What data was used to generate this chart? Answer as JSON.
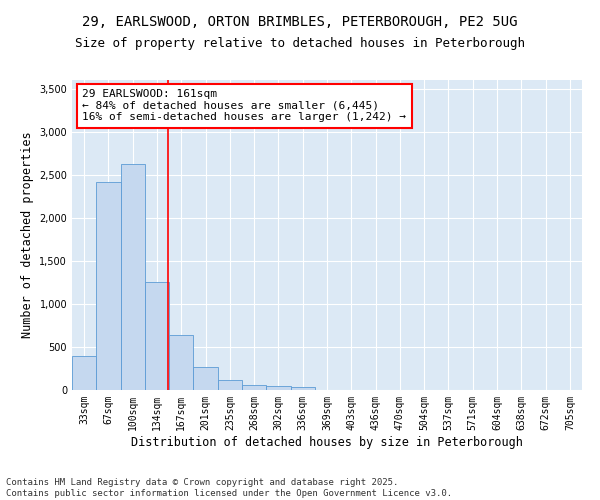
{
  "title_line1": "29, EARLSWOOD, ORTON BRIMBLES, PETERBOROUGH, PE2 5UG",
  "title_line2": "Size of property relative to detached houses in Peterborough",
  "xlabel": "Distribution of detached houses by size in Peterborough",
  "ylabel": "Number of detached properties",
  "categories": [
    "33sqm",
    "67sqm",
    "100sqm",
    "134sqm",
    "167sqm",
    "201sqm",
    "235sqm",
    "268sqm",
    "302sqm",
    "336sqm",
    "369sqm",
    "403sqm",
    "436sqm",
    "470sqm",
    "504sqm",
    "537sqm",
    "571sqm",
    "604sqm",
    "638sqm",
    "672sqm",
    "705sqm"
  ],
  "values": [
    400,
    2420,
    2630,
    1250,
    640,
    265,
    115,
    60,
    45,
    35,
    0,
    0,
    0,
    0,
    0,
    0,
    0,
    0,
    0,
    0,
    0
  ],
  "bar_color": "#c5d8ef",
  "bar_edge_color": "#5b9bd5",
  "vline_color": "red",
  "vline_x_index": 3.45,
  "annotation_text": "29 EARLSWOOD: 161sqm\n← 84% of detached houses are smaller (6,445)\n16% of semi-detached houses are larger (1,242) →",
  "annotation_box_color": "white",
  "annotation_box_edge_color": "red",
  "ylim": [
    0,
    3600
  ],
  "yticks": [
    0,
    500,
    1000,
    1500,
    2000,
    2500,
    3000,
    3500
  ],
  "background_color": "#dce9f5",
  "footer_line1": "Contains HM Land Registry data © Crown copyright and database right 2025.",
  "footer_line2": "Contains public sector information licensed under the Open Government Licence v3.0.",
  "title_fontsize": 10,
  "subtitle_fontsize": 9,
  "axis_label_fontsize": 8.5,
  "tick_fontsize": 7,
  "annotation_fontsize": 8,
  "footer_fontsize": 6.5
}
